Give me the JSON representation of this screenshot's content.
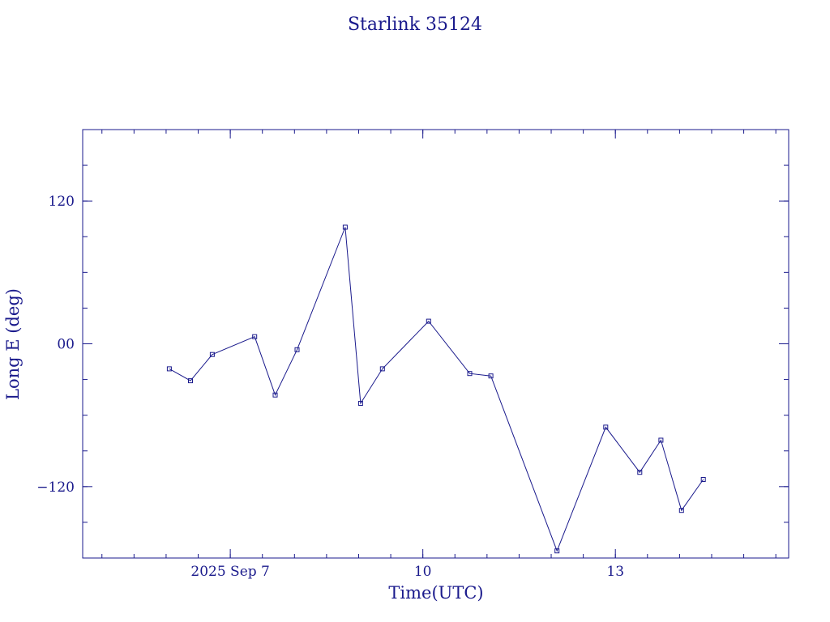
{
  "colors": {
    "ink": "#1a1a8c",
    "line": "#1a1a8c",
    "background": "#ffffff"
  },
  "chart_data": {
    "type": "line",
    "title": "Starlink 35124",
    "xlabel": "Time(UTC)",
    "ylabel": "Long E (deg)",
    "x_unit": "days of September 2025 (UTC)",
    "xlim": [
      4.7,
      15.7
    ],
    "ylim": [
      -180,
      180
    ],
    "x_ticks": [
      {
        "value": 7,
        "label": "2025 Sep  7"
      },
      {
        "value": 10,
        "label": "10"
      },
      {
        "value": 13,
        "label": "13"
      }
    ],
    "y_ticks": [
      {
        "value": 120,
        "label": "120"
      },
      {
        "value": 0,
        "label": "00"
      },
      {
        "value": -120,
        "label": "−120"
      }
    ],
    "grid": false,
    "legend": "none",
    "series": [
      {
        "x": [
          6.05,
          6.38,
          6.72,
          7.38,
          7.7,
          8.04,
          8.79,
          9.03,
          9.37,
          10.09,
          10.73,
          11.06,
          12.09,
          12.85,
          13.38,
          13.71,
          14.03,
          14.37
        ],
        "y": [
          -21,
          -31,
          -9,
          6,
          -43,
          -5,
          98,
          -50,
          -21,
          19,
          -25,
          -27,
          -174,
          -70,
          -108,
          -81,
          -140,
          -114
        ]
      }
    ]
  }
}
